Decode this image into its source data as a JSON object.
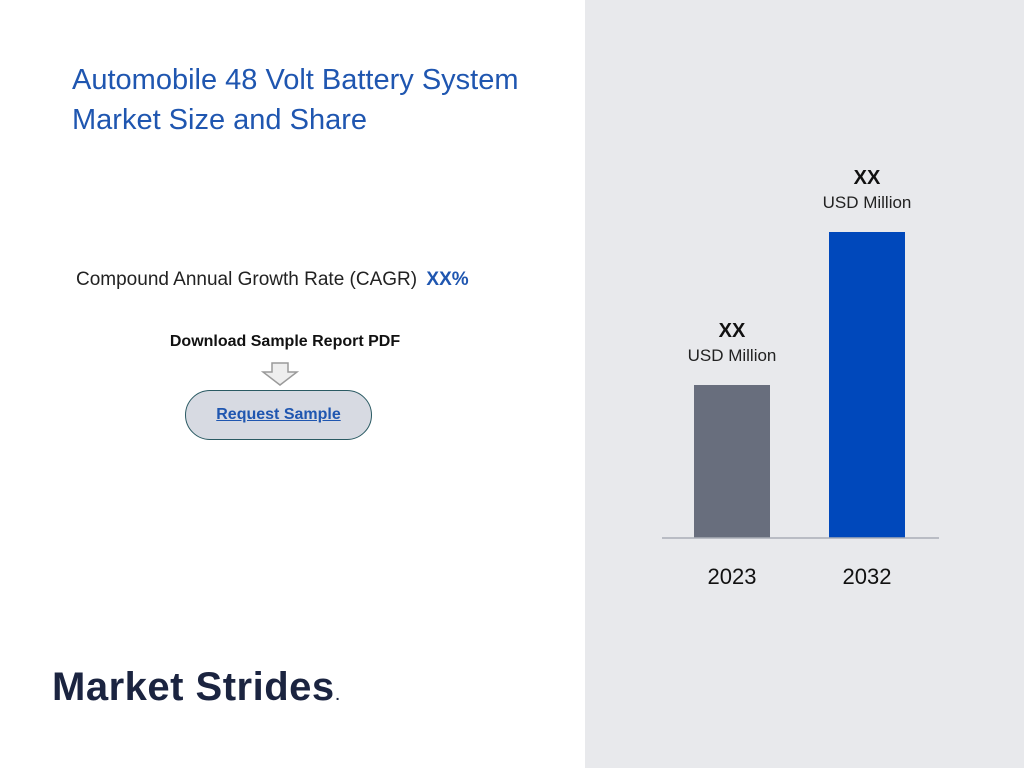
{
  "title": "Automobile 48 Volt Battery System Market Size and Share",
  "cagr": {
    "label": "Compound Annual Growth Rate (CAGR)",
    "value": "XX%"
  },
  "download": {
    "label": "Download Sample Report PDF",
    "button_label": "Request Sample"
  },
  "logo": {
    "text": "Market Strides",
    "trademark_dot": "."
  },
  "colors": {
    "title": "#1f56b0",
    "bar_2023": "#686e7d",
    "bar_2032": "#0048bb",
    "panel_bg": "#e8e9ec",
    "logo": "#1b2440"
  },
  "chart_data": {
    "type": "bar",
    "categories": [
      "2023",
      "2032"
    ],
    "values": [
      1,
      2
    ],
    "value_labels": [
      "XX",
      "XX"
    ],
    "unit_labels": [
      "USD Million",
      "USD Million"
    ],
    "title": "",
    "xlabel": "",
    "ylabel": ""
  }
}
